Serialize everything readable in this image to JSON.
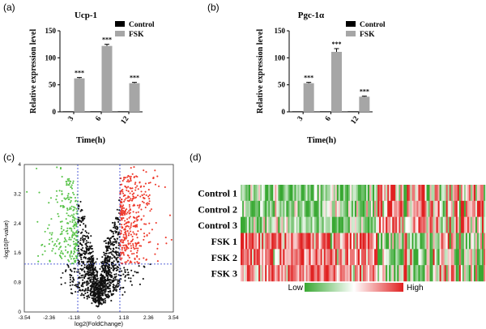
{
  "panels": {
    "a_label": "(a)",
    "b_label": "(b)",
    "c_label": "(c)",
    "d_label": "(d)"
  },
  "colors": {
    "control": "#000000",
    "fsk": "#a6a6a6",
    "volcano_up": "#ee3a2c",
    "volcano_down": "#59c34a",
    "volcano_ns": "#111111",
    "heat_low": "#38a832",
    "heat_mid": "#ffffff",
    "heat_high": "#e02020"
  },
  "chart_data": [
    {
      "type": "bar",
      "title": "Ucp-1",
      "xlabel": "Time(h)",
      "ylabel": "Relative expression level",
      "categories": [
        "3",
        "6",
        "12"
      ],
      "ylim": [
        0,
        150
      ],
      "yticks": [
        0,
        50,
        100,
        150
      ],
      "series": [
        {
          "name": "Control",
          "values": [
            1,
            1,
            1
          ]
        },
        {
          "name": "FSK",
          "values": [
            62,
            122,
            53
          ],
          "errors": [
            1.5,
            3,
            1.5
          ]
        }
      ],
      "annotations": [
        "***",
        "***",
        "***"
      ],
      "legend": "top-right"
    },
    {
      "type": "bar",
      "title": "Pgc-1α",
      "xlabel": "Time(h)",
      "ylabel": "Relative expression level",
      "categories": [
        "3",
        "6",
        "12"
      ],
      "ylim": [
        0,
        150
      ],
      "yticks": [
        0,
        50,
        100,
        150
      ],
      "series": [
        {
          "name": "Control",
          "values": [
            1,
            1,
            1
          ]
        },
        {
          "name": "FSK",
          "values": [
            53,
            111,
            28
          ],
          "errors": [
            1.5,
            6,
            1
          ]
        }
      ],
      "annotations": [
        "***",
        "***",
        "***"
      ],
      "legend": "top-right"
    },
    {
      "type": "scatter",
      "title": "",
      "xlabel": "log2(FoldChange)",
      "ylabel": "-log10(P-value)",
      "xlim": [
        -3.54,
        3.54
      ],
      "ylim": [
        0,
        4
      ],
      "xticks": [
        -3.54,
        -2.36,
        -1.18,
        0,
        1.18,
        2.36,
        3.54
      ],
      "xtick_labels": [
        "-3.54",
        "-2.36",
        "-1.18",
        "0",
        "1.18",
        "2.36",
        "3.54"
      ],
      "yticks": [
        0,
        0.8,
        1.6,
        2.4,
        3.2,
        4
      ],
      "ytick_labels": [
        "0",
        "0.8",
        "1.6",
        "2.4",
        "3.2",
        "4"
      ],
      "thresholds": {
        "fold_change": 1,
        "p_value": 1.3
      },
      "groups": [
        "up",
        "down",
        "not significant"
      ]
    },
    {
      "type": "heatmap",
      "rows": [
        "Control 1",
        "Control 2",
        "Control 3",
        "FSK 1",
        "FSK 2",
        "FSK 3"
      ],
      "scale_low": "Low",
      "scale_high": "High"
    }
  ]
}
